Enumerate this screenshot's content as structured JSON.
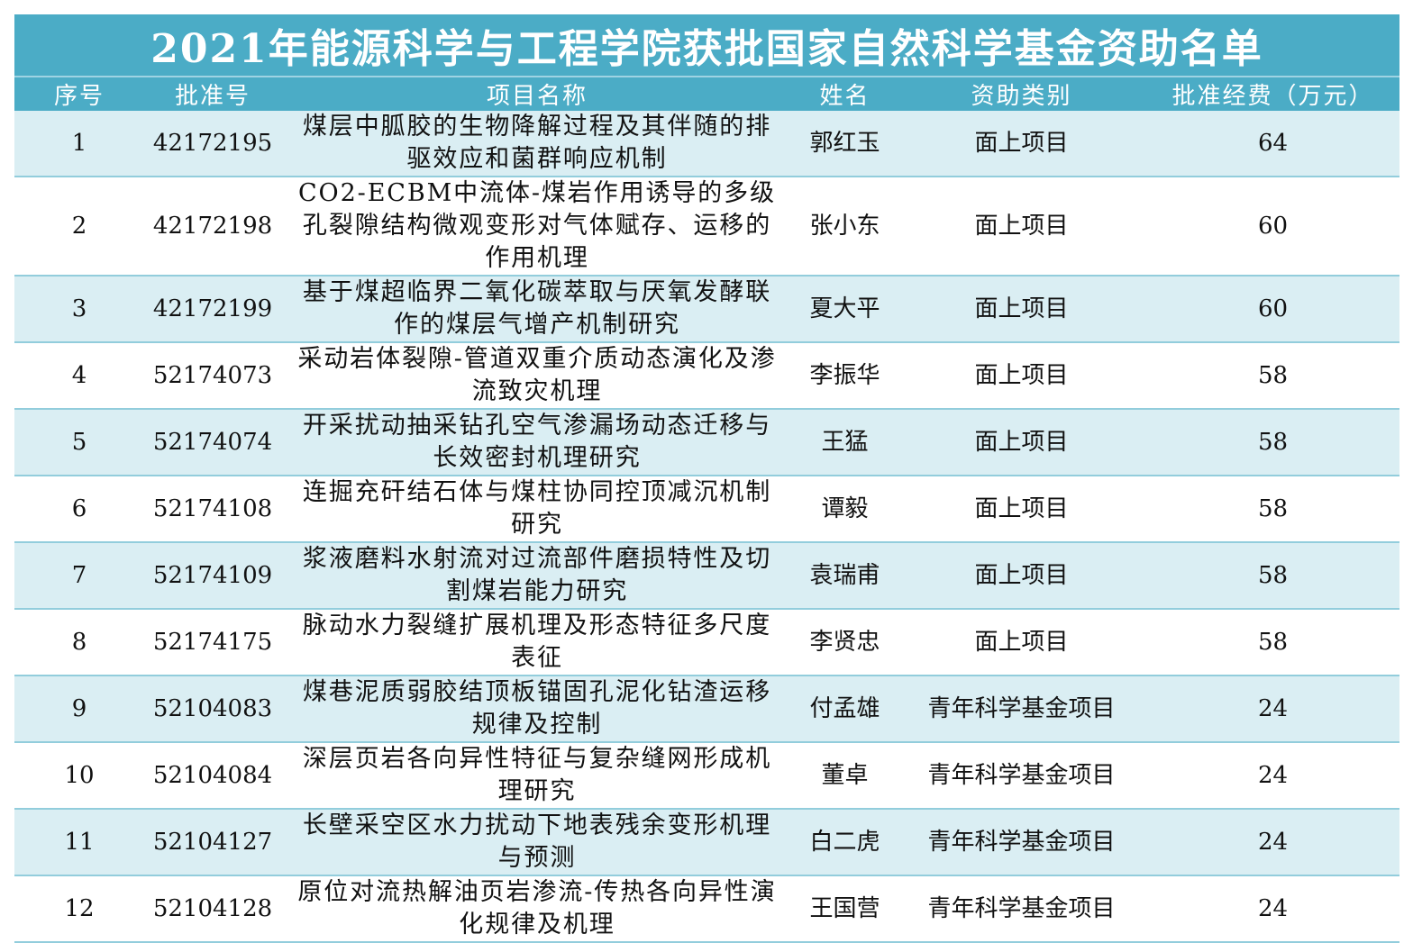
{
  "title": "2021年能源科学与工程学院获批国家自然科学基金资助名单",
  "headers": {
    "no": "序号",
    "approval": "批准号",
    "project": "项目名称",
    "name": "姓名",
    "category": "资助类别",
    "funding": "批准经费（万元）"
  },
  "colors": {
    "header": "#4bacc6",
    "row_alt": "#daeef3"
  },
  "rows": [
    {
      "no": "1",
      "approval": "42172195",
      "project": "煤层中胍胶的生物降解过程及其伴随的排驱效应和菌群响应机制",
      "name": "郭红玉",
      "category": "面上项目",
      "funding": "64"
    },
    {
      "no": "2",
      "approval": "42172198",
      "project": "CO2-ECBM中流体-煤岩作用诱导的多级孔裂隙结构微观变形对气体赋存、运移的作用机理",
      "name": "张小东",
      "category": "面上项目",
      "funding": "60"
    },
    {
      "no": "3",
      "approval": "42172199",
      "project": "基于煤超临界二氧化碳萃取与厌氧发酵联作的煤层气增产机制研究",
      "name": "夏大平",
      "category": "面上项目",
      "funding": "60"
    },
    {
      "no": "4",
      "approval": "52174073",
      "project": "采动岩体裂隙-管道双重介质动态演化及渗流致灾机理",
      "name": "李振华",
      "category": "面上项目",
      "funding": "58"
    },
    {
      "no": "5",
      "approval": "52174074",
      "project": "开采扰动抽采钻孔空气渗漏场动态迁移与长效密封机理研究",
      "name": "王猛",
      "category": "面上项目",
      "funding": "58"
    },
    {
      "no": "6",
      "approval": "52174108",
      "project": "连掘充矸结石体与煤柱协同控顶减沉机制研究",
      "name": "谭毅",
      "category": "面上项目",
      "funding": "58"
    },
    {
      "no": "7",
      "approval": "52174109",
      "project": "浆液磨料水射流对过流部件磨损特性及切割煤岩能力研究",
      "name": "袁瑞甫",
      "category": "面上项目",
      "funding": "58"
    },
    {
      "no": "8",
      "approval": "52174175",
      "project": "脉动水力裂缝扩展机理及形态特征多尺度表征",
      "name": "李贤忠",
      "category": "面上项目",
      "funding": "58"
    },
    {
      "no": "9",
      "approval": "52104083",
      "project": "煤巷泥质弱胶结顶板锚固孔泥化钻渣运移规律及控制",
      "name": "付孟雄",
      "category": "青年科学基金项目",
      "funding": "24"
    },
    {
      "no": "10",
      "approval": "52104084",
      "project": "深层页岩各向异性特征与复杂缝网形成机理研究",
      "name": "董卓",
      "category": "青年科学基金项目",
      "funding": "24"
    },
    {
      "no": "11",
      "approval": "52104127",
      "project": "长壁采空区水力扰动下地表残余变形机理与预测",
      "name": "白二虎",
      "category": "青年科学基金项目",
      "funding": "24"
    },
    {
      "no": "12",
      "approval": "52104128",
      "project": "原位对流热解油页岩渗流-传热各向异性演化规律及机理",
      "name": "王国营",
      "category": "青年科学基金项目",
      "funding": "24"
    }
  ]
}
